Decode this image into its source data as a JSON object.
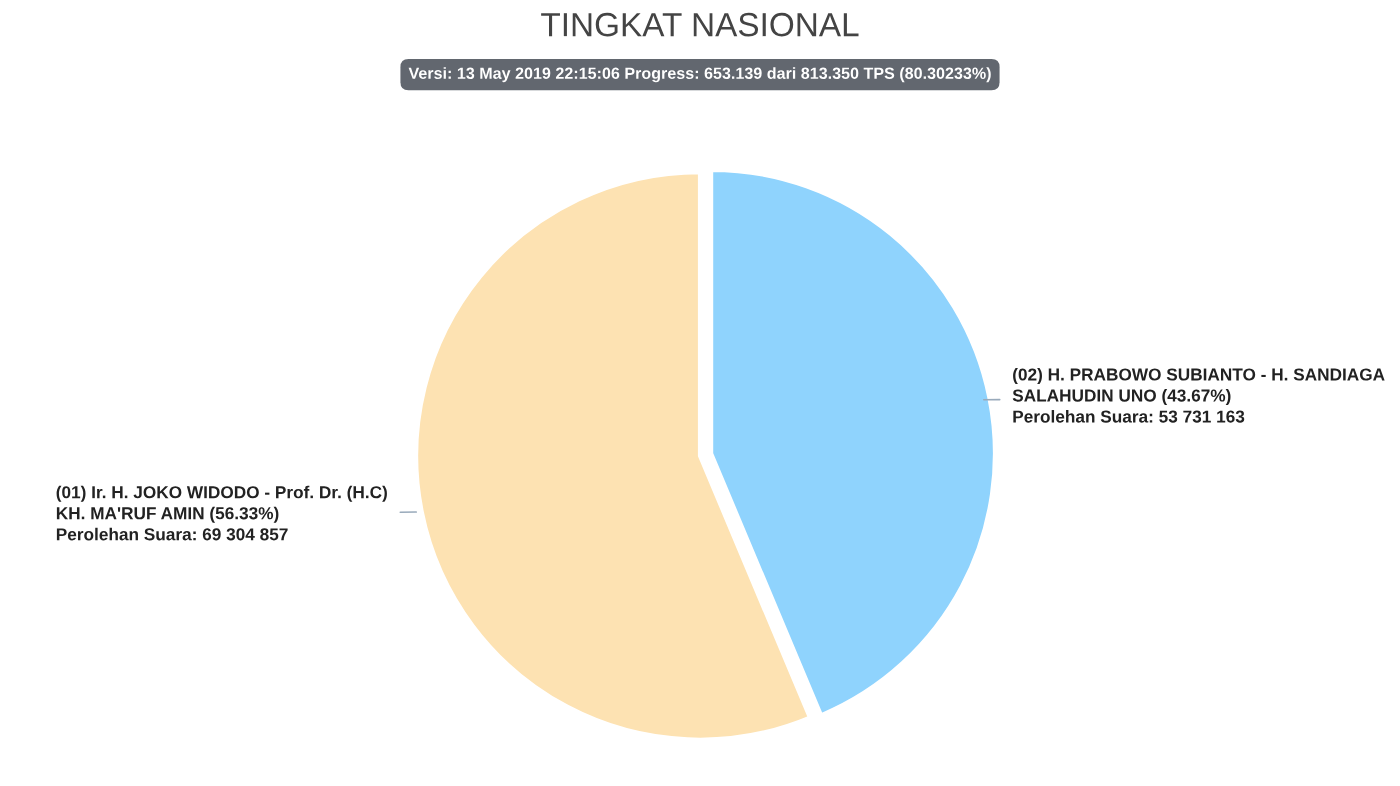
{
  "chart_data": {
    "type": "pie",
    "title": "TINGKAT NASIONAL",
    "subtitle": "Versi: 13 May 2019 22:15:06 Progress: 653.139 dari 813.350 TPS (80.30233%)",
    "categories": [
      "(01) Ir. H. JOKO WIDODO - Prof. Dr. (H.C)\nKH. MA'RUF AMIN (56.33%)\nPerolehan Suara: 69 304 857",
      "(02) H. PRABOWO SUBIANTO - H. SANDIAGA\nSALAHUDIN UNO (43.67%)\nPerolehan Suara: 53 731 163"
    ],
    "values": [
      69304857,
      53731163
    ],
    "colors": [
      "#fde2b2",
      "#8fd3fd"
    ]
  }
}
